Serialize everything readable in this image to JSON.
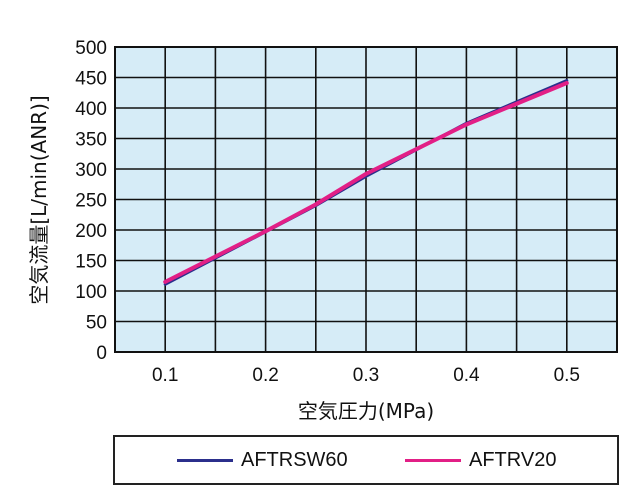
{
  "chart_data": {
    "type": "line",
    "xlabel": "空気圧力(MPa)",
    "ylabel": "空気流量[L/min(ANR)]",
    "x_ticks": [
      "0.1",
      "0.2",
      "0.3",
      "0.4",
      "0.5"
    ],
    "y_ticks": [
      "0",
      "50",
      "100",
      "150",
      "200",
      "250",
      "300",
      "350",
      "400",
      "450",
      "500"
    ],
    "xlim": [
      0.05,
      0.55
    ],
    "ylim": [
      0,
      500
    ],
    "grid": true,
    "legend_position": "bottom",
    "plot_background": "#d6ecf7",
    "series": [
      {
        "name": "AFTRSW60",
        "color": "#2b2f8c",
        "points": [
          [
            0.1,
            111
          ],
          [
            0.2,
            197
          ],
          [
            0.25,
            240
          ],
          [
            0.3,
            288
          ],
          [
            0.4,
            375
          ],
          [
            0.5,
            445
          ]
        ]
      },
      {
        "name": "AFTRV20",
        "color": "#e21f86",
        "points": [
          [
            0.1,
            115
          ],
          [
            0.2,
            198
          ],
          [
            0.25,
            242
          ],
          [
            0.3,
            292
          ],
          [
            0.4,
            373
          ],
          [
            0.5,
            441
          ]
        ]
      }
    ]
  }
}
